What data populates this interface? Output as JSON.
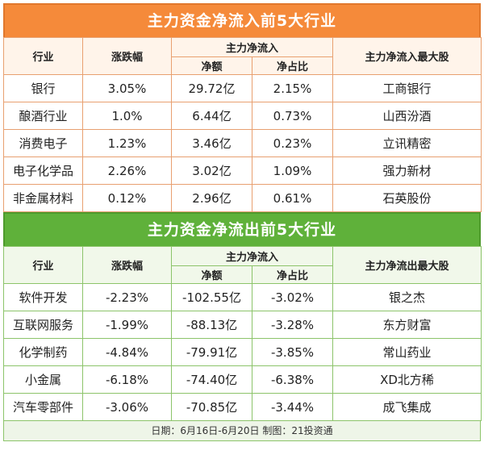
{
  "inflow": {
    "title": "主力资金净流入前5大行业",
    "headers": {
      "industry": "行业",
      "change": "涨跌幅",
      "net_inflow": "主力净流入",
      "net_amount": "净额",
      "net_ratio": "净占比",
      "top_stock": "主力净流入最大股"
    },
    "rows": [
      {
        "industry": "银行",
        "change": "3.05%",
        "amount": "29.72亿",
        "ratio": "2.15%",
        "stock": "工商银行"
      },
      {
        "industry": "酿酒行业",
        "change": "1.0%",
        "amount": "6.44亿",
        "ratio": "0.73%",
        "stock": "山西汾酒"
      },
      {
        "industry": "消费电子",
        "change": "1.23%",
        "amount": "3.46亿",
        "ratio": "0.23%",
        "stock": "立讯精密"
      },
      {
        "industry": "电子化学品",
        "change": "2.26%",
        "amount": "3.02亿",
        "ratio": "1.09%",
        "stock": "强力新材"
      },
      {
        "industry": "非金属材料",
        "change": "0.12%",
        "amount": "2.96亿",
        "ratio": "0.61%",
        "stock": "石英股份"
      }
    ]
  },
  "outflow": {
    "title": "主力资金净流出前5大行业",
    "headers": {
      "industry": "行业",
      "change": "涨跌幅",
      "net_inflow": "主力净流入",
      "net_amount": "净额",
      "net_ratio": "净占比",
      "top_stock": "主力净流出最大股"
    },
    "rows": [
      {
        "industry": "软件开发",
        "change": "-2.23%",
        "amount": "-102.55亿",
        "ratio": "-3.02%",
        "stock": "银之杰"
      },
      {
        "industry": "互联网服务",
        "change": "-1.99%",
        "amount": "-88.13亿",
        "ratio": "-3.28%",
        "stock": "东方财富"
      },
      {
        "industry": "化学制药",
        "change": "-4.84%",
        "amount": "-79.91亿",
        "ratio": "-3.85%",
        "stock": "常山药业"
      },
      {
        "industry": "小金属",
        "change": "-6.18%",
        "amount": "-74.40亿",
        "ratio": "-6.38%",
        "stock": "XD北方稀"
      },
      {
        "industry": "汽车零部件",
        "change": "-3.06%",
        "amount": "-70.85亿",
        "ratio": "-3.44%",
        "stock": "成飞集成"
      }
    ]
  },
  "footer": "日期：6月16日-6月20日 制图：21投资通",
  "colors": {
    "orange": "#f58a3a",
    "green": "#5fb13a"
  }
}
